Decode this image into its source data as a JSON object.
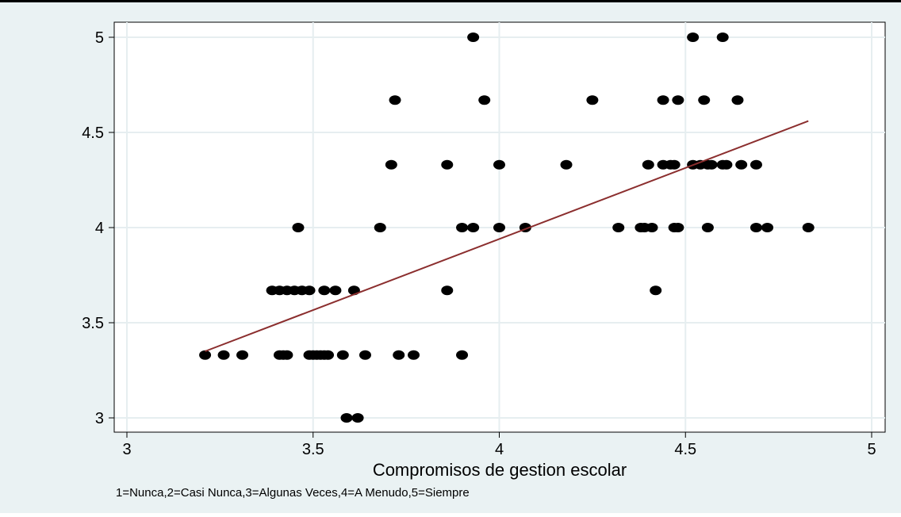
{
  "colors": {
    "outer_background": "#eaf2f3",
    "plot_background": "#ffffff",
    "grid": "#e6eef0",
    "marker": "#000000",
    "fit_line": "#8b2e2e",
    "top_border": "#000000"
  },
  "chart_data": {
    "type": "scatter",
    "title": "",
    "xlabel": "Compromisos de gestion escolar",
    "ylabel": "",
    "note": "1=Nunca,2=Casi Nunca,3=Algunas Veces,4=A Menudo,5=Siempre",
    "xlim": [
      3,
      5
    ],
    "ylim": [
      3,
      5
    ],
    "x_ticks": [
      3,
      3.5,
      4,
      4.5,
      5
    ],
    "x_tick_labels": [
      "3",
      "3.5",
      "4",
      "4.5",
      "5"
    ],
    "y_ticks": [
      3,
      3.5,
      4,
      4.5,
      5
    ],
    "y_tick_labels": [
      "3",
      "3.5",
      "4",
      "4.5",
      "5"
    ],
    "grid": true,
    "points": [
      {
        "x": 3.93,
        "y": 5
      },
      {
        "x": 4.52,
        "y": 5
      },
      {
        "x": 4.6,
        "y": 5
      },
      {
        "x": 3.72,
        "y": 4.67
      },
      {
        "x": 3.96,
        "y": 4.67
      },
      {
        "x": 4.25,
        "y": 4.67
      },
      {
        "x": 4.44,
        "y": 4.67
      },
      {
        "x": 4.48,
        "y": 4.67
      },
      {
        "x": 4.55,
        "y": 4.67
      },
      {
        "x": 4.64,
        "y": 4.67
      },
      {
        "x": 3.71,
        "y": 4.33
      },
      {
        "x": 3.86,
        "y": 4.33
      },
      {
        "x": 4.0,
        "y": 4.33
      },
      {
        "x": 4.18,
        "y": 4.33
      },
      {
        "x": 4.4,
        "y": 4.33
      },
      {
        "x": 4.44,
        "y": 4.33
      },
      {
        "x": 4.46,
        "y": 4.33
      },
      {
        "x": 4.47,
        "y": 4.33
      },
      {
        "x": 4.52,
        "y": 4.33
      },
      {
        "x": 4.54,
        "y": 4.33
      },
      {
        "x": 4.56,
        "y": 4.33
      },
      {
        "x": 4.57,
        "y": 4.33
      },
      {
        "x": 4.6,
        "y": 4.33
      },
      {
        "x": 4.61,
        "y": 4.33
      },
      {
        "x": 4.65,
        "y": 4.33
      },
      {
        "x": 4.69,
        "y": 4.33
      },
      {
        "x": 3.46,
        "y": 4
      },
      {
        "x": 3.68,
        "y": 4
      },
      {
        "x": 3.9,
        "y": 4
      },
      {
        "x": 3.93,
        "y": 4
      },
      {
        "x": 4.0,
        "y": 4
      },
      {
        "x": 4.07,
        "y": 4
      },
      {
        "x": 4.32,
        "y": 4
      },
      {
        "x": 4.38,
        "y": 4
      },
      {
        "x": 4.39,
        "y": 4
      },
      {
        "x": 4.41,
        "y": 4
      },
      {
        "x": 4.47,
        "y": 4
      },
      {
        "x": 4.48,
        "y": 4
      },
      {
        "x": 4.56,
        "y": 4
      },
      {
        "x": 4.69,
        "y": 4
      },
      {
        "x": 4.72,
        "y": 4
      },
      {
        "x": 4.83,
        "y": 4
      },
      {
        "x": 3.39,
        "y": 3.67
      },
      {
        "x": 3.41,
        "y": 3.67
      },
      {
        "x": 3.43,
        "y": 3.67
      },
      {
        "x": 3.45,
        "y": 3.67
      },
      {
        "x": 3.47,
        "y": 3.67
      },
      {
        "x": 3.49,
        "y": 3.67
      },
      {
        "x": 3.53,
        "y": 3.67
      },
      {
        "x": 3.56,
        "y": 3.67
      },
      {
        "x": 3.61,
        "y": 3.67
      },
      {
        "x": 3.86,
        "y": 3.67
      },
      {
        "x": 4.42,
        "y": 3.67
      },
      {
        "x": 3.21,
        "y": 3.33
      },
      {
        "x": 3.26,
        "y": 3.33
      },
      {
        "x": 3.31,
        "y": 3.33
      },
      {
        "x": 3.41,
        "y": 3.33
      },
      {
        "x": 3.42,
        "y": 3.33
      },
      {
        "x": 3.43,
        "y": 3.33
      },
      {
        "x": 3.49,
        "y": 3.33
      },
      {
        "x": 3.5,
        "y": 3.33
      },
      {
        "x": 3.51,
        "y": 3.33
      },
      {
        "x": 3.52,
        "y": 3.33
      },
      {
        "x": 3.53,
        "y": 3.33
      },
      {
        "x": 3.54,
        "y": 3.33
      },
      {
        "x": 3.58,
        "y": 3.33
      },
      {
        "x": 3.64,
        "y": 3.33
      },
      {
        "x": 3.73,
        "y": 3.33
      },
      {
        "x": 3.77,
        "y": 3.33
      },
      {
        "x": 3.9,
        "y": 3.33
      },
      {
        "x": 3.59,
        "y": 3
      },
      {
        "x": 3.62,
        "y": 3
      }
    ],
    "fit_line": {
      "x": [
        3.21,
        4.83
      ],
      "y": [
        3.35,
        4.56
      ]
    }
  }
}
